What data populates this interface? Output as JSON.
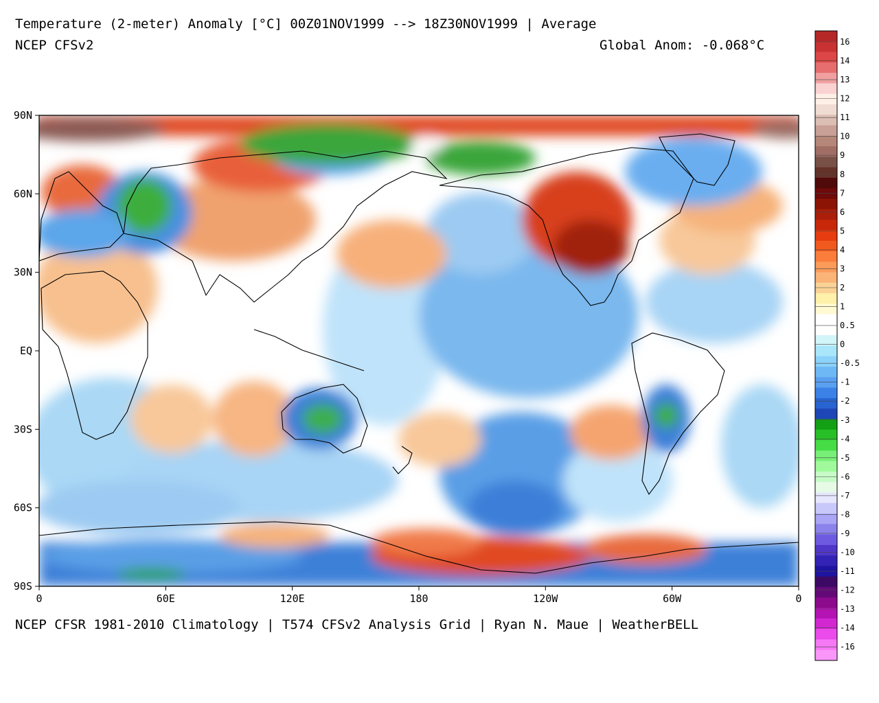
{
  "header": {
    "title": "Temperature (2-meter) Anomaly  [°C] 00Z01NOV1999 --> 18Z30NOV1999 | Average",
    "source": "NCEP CFSv2",
    "global_anom": "Global Anom: -0.068°C"
  },
  "footer": {
    "credits": "NCEP CFSR 1981-2010 Climatology | T574 CFSv2 Analysis Grid | Ryan N. Maue | WeatherBELL"
  },
  "axes": {
    "lat_labels": [
      "90N",
      "60N",
      "30N",
      "EQ",
      "30S",
      "60S",
      "90S"
    ],
    "lon_labels": [
      "0",
      "60E",
      "120E",
      "180",
      "120W",
      "60W",
      "0"
    ]
  },
  "colorbar": {
    "labels": [
      "16",
      "14",
      "13",
      "12",
      "11",
      "10",
      "9",
      "8",
      "7",
      "6",
      "5",
      "4",
      "3",
      "2",
      "1",
      "0.5",
      "0",
      "-0.5",
      "-1",
      "-2",
      "-3",
      "-4",
      "-5",
      "-6",
      "-7",
      "-8",
      "-9",
      "-10",
      "-11",
      "-12",
      "-13",
      "-14",
      "-16"
    ],
    "colors": [
      "#b42828",
      "#c83232",
      "#dc4646",
      "#e66e6e",
      "#f0a0a0",
      "#fad2d2",
      "#fff0e6",
      "#f0dcd2",
      "#dcbeb4",
      "#c8a096",
      "#b48778",
      "#a06e64",
      "#785046",
      "#643228",
      "#500a0a",
      "#6e0a0a",
      "#8c1405",
      "#aa1e0a",
      "#c8280a",
      "#e63c0f",
      "#f05a1e",
      "#fa7d3c",
      "#fa9b5a",
      "#fab478",
      "#fad296",
      "#fff0aa",
      "#fffad2",
      "#ffffff",
      "#ffffff",
      "#d2f5fa",
      "#aae6fa",
      "#8cd2fa",
      "#6eb9f5",
      "#5aa0f0",
      "#3c82e6",
      "#2864d2",
      "#1e46b4",
      "#14a014",
      "#28be28",
      "#46dc46",
      "#78f078",
      "#a0fa9b",
      "#c8fac8",
      "#e6fae6",
      "#e6e6ff",
      "#c8c8fa",
      "#aaa5f5",
      "#8c82eb",
      "#6e5ae1",
      "#5037c8",
      "#3223b4",
      "#1e14a0",
      "#3c0a64",
      "#640a78",
      "#8c0a8c",
      "#b414b4",
      "#d228d2",
      "#eb4beb",
      "#f578f5",
      "#fa96fa"
    ]
  }
}
